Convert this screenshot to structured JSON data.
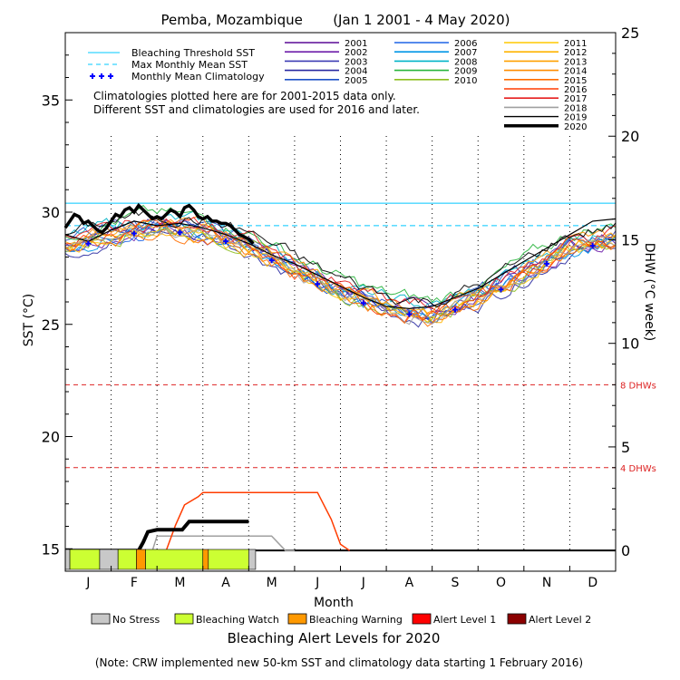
{
  "chart_data": {
    "type": "line",
    "title": "Pemba, Mozambique       (Jan 1 2001 - 4 May 2020)",
    "xlabel": "Month",
    "ylabel_left": "SST (°C)",
    "ylabel_right": "DHW (°C week)",
    "months": [
      "J",
      "F",
      "M",
      "A",
      "M",
      "J",
      "J",
      "A",
      "S",
      "O",
      "N",
      "D"
    ],
    "sst_ticks": [
      15,
      20,
      25,
      30,
      35
    ],
    "sst_range": [
      14,
      38
    ],
    "dhw_ticks": [
      0,
      5,
      10,
      15,
      20,
      25
    ],
    "dhw_range": [
      -1,
      25
    ],
    "bleaching_threshold": 30.4,
    "max_monthly_mean": 29.4,
    "dhw_levels": [
      {
        "value": 8,
        "label": "8 DHWs"
      },
      {
        "value": 4,
        "label": "4 DHWs"
      }
    ],
    "legend_lines": [
      {
        "label": "Bleaching Threshold SST",
        "color": "#00c8ff",
        "style": "solid"
      },
      {
        "label": "Max Monthly Mean SST",
        "color": "#00c8ff",
        "style": "dashed"
      },
      {
        "label": "Monthly Mean Climatology",
        "color": "#0000ff",
        "style": "plus"
      }
    ],
    "notes": [
      "Climatologies plotted here are for 2001-2015 data only.",
      "Different SST and climatologies are used for 2016 and later."
    ],
    "years": [
      {
        "year": "2001",
        "color": "#5a0a96"
      },
      {
        "year": "2002",
        "color": "#6e1eaa"
      },
      {
        "year": "2003",
        "color": "#3c3cb4"
      },
      {
        "year": "2004",
        "color": "#2828a0"
      },
      {
        "year": "2005",
        "color": "#1e50c8"
      },
      {
        "year": "2006",
        "color": "#1e64e6"
      },
      {
        "year": "2007",
        "color": "#0096e6"
      },
      {
        "year": "2008",
        "color": "#00b4c8"
      },
      {
        "year": "2009",
        "color": "#28b43c"
      },
      {
        "year": "2010",
        "color": "#8cbe1e"
      },
      {
        "year": "2011",
        "color": "#ffc800"
      },
      {
        "year": "2012",
        "color": "#ffb400"
      },
      {
        "year": "2013",
        "color": "#ffa000"
      },
      {
        "year": "2014",
        "color": "#ff8c00"
      },
      {
        "year": "2015",
        "color": "#ff6e00"
      },
      {
        "year": "2016",
        "color": "#ff3c00"
      },
      {
        "year": "2017",
        "color": "#e61e1e"
      },
      {
        "year": "2018",
        "color": "#a0a0a0"
      },
      {
        "year": "2019",
        "color": "#000000"
      },
      {
        "year": "2020",
        "color": "#000000"
      }
    ],
    "series_2020_sst": {
      "x": [
        0.0,
        0.1,
        0.2,
        0.3,
        0.4,
        0.5,
        0.6,
        0.7,
        0.8,
        0.9,
        1.0,
        1.1,
        1.2,
        1.3,
        1.4,
        1.5,
        1.6,
        1.7,
        1.8,
        1.9,
        2.0,
        2.1,
        2.2,
        2.3,
        2.4,
        2.5,
        2.6,
        2.7,
        2.8,
        2.9,
        3.0,
        3.1,
        3.2,
        3.3,
        3.4,
        3.5,
        3.6,
        3.7,
        3.8,
        3.9,
        4.0,
        4.1
      ],
      "y": [
        29.3,
        29.6,
        29.9,
        29.8,
        29.5,
        29.6,
        29.4,
        29.2,
        29.1,
        29.3,
        29.6,
        29.9,
        29.8,
        30.1,
        30.2,
        30.0,
        30.3,
        30.1,
        29.9,
        29.7,
        29.8,
        29.7,
        29.9,
        30.1,
        30.0,
        29.8,
        30.2,
        30.3,
        30.1,
        29.8,
        29.7,
        29.8,
        29.6,
        29.6,
        29.5,
        29.5,
        29.4,
        29.2,
        29.0,
        28.9,
        28.8,
        28.6
      ]
    },
    "series_2019_sst": {
      "x": [
        0.0,
        0.5,
        1.0,
        1.5,
        2.0,
        2.5,
        3.0,
        3.5,
        4.0,
        4.5,
        5.0,
        5.5,
        6.0,
        6.5,
        7.0,
        7.5,
        8.0,
        8.5,
        9.0,
        9.5,
        10.0,
        10.5,
        11.0,
        11.5,
        12.0
      ],
      "y": [
        29.0,
        28.7,
        29.2,
        29.6,
        29.4,
        29.5,
        29.3,
        29.0,
        28.6,
        28.1,
        27.7,
        27.2,
        26.7,
        26.2,
        25.8,
        25.7,
        25.8,
        26.2,
        26.6,
        27.2,
        27.8,
        28.4,
        29.0,
        29.6,
        29.7
      ]
    },
    "dhw_2020": {
      "x": [
        0.0,
        1.6,
        1.7,
        1.8,
        2.0,
        2.2,
        2.4,
        2.55,
        2.7,
        3.0,
        3.4,
        3.9,
        4.0
      ],
      "y": [
        0,
        0,
        0.4,
        0.9,
        1.0,
        1.0,
        1.0,
        1.0,
        1.4,
        1.4,
        1.4,
        1.4,
        1.4
      ]
    },
    "dhw_2016": {
      "x": [
        0.0,
        2.2,
        2.4,
        2.6,
        2.9,
        3.0,
        3.5,
        4.0,
        5.0,
        5.5,
        5.8,
        6.0,
        6.2
      ],
      "y": [
        0,
        0,
        1.2,
        2.2,
        2.6,
        2.8,
        2.8,
        2.8,
        2.8,
        2.8,
        1.5,
        0.3,
        0
      ]
    },
    "dhw_2018": {
      "x": [
        0.0,
        1.9,
        2.0,
        2.5,
        3.0,
        4.0,
        4.5,
        4.8,
        5.0
      ],
      "y": [
        0,
        0,
        0.7,
        0.7,
        0.7,
        0.7,
        0.7,
        0.0,
        0
      ]
    },
    "alert_bar": [
      {
        "from": 0.0,
        "to": 0.1,
        "level": "No Stress"
      },
      {
        "from": 0.1,
        "to": 0.75,
        "level": "Bleaching Watch"
      },
      {
        "from": 0.75,
        "to": 1.15,
        "level": "No Stress"
      },
      {
        "from": 1.15,
        "to": 1.55,
        "level": "Bleaching Watch"
      },
      {
        "from": 1.55,
        "to": 1.75,
        "level": "Bleaching Warning"
      },
      {
        "from": 1.75,
        "to": 3.0,
        "level": "Bleaching Watch"
      },
      {
        "from": 3.0,
        "to": 3.12,
        "level": "Bleaching Warning"
      },
      {
        "from": 3.12,
        "to": 4.0,
        "level": "Bleaching Watch"
      },
      {
        "from": 4.0,
        "to": 4.15,
        "level": "No Stress"
      }
    ],
    "alert_legend": [
      {
        "label": "No Stress",
        "color": "#c8c8c8"
      },
      {
        "label": "Bleaching Watch",
        "color": "#ccff33"
      },
      {
        "label": "Bleaching Warning",
        "color": "#ff9900"
      },
      {
        "label": "Alert Level 1",
        "color": "#ff0000"
      },
      {
        "label": "Alert Level 2",
        "color": "#8b0000"
      }
    ],
    "alert_title": "Bleaching Alert Levels for 2020",
    "footnote": "(Note: CRW implemented new 50-km SST and climatology data starting 1 February 2016)"
  }
}
